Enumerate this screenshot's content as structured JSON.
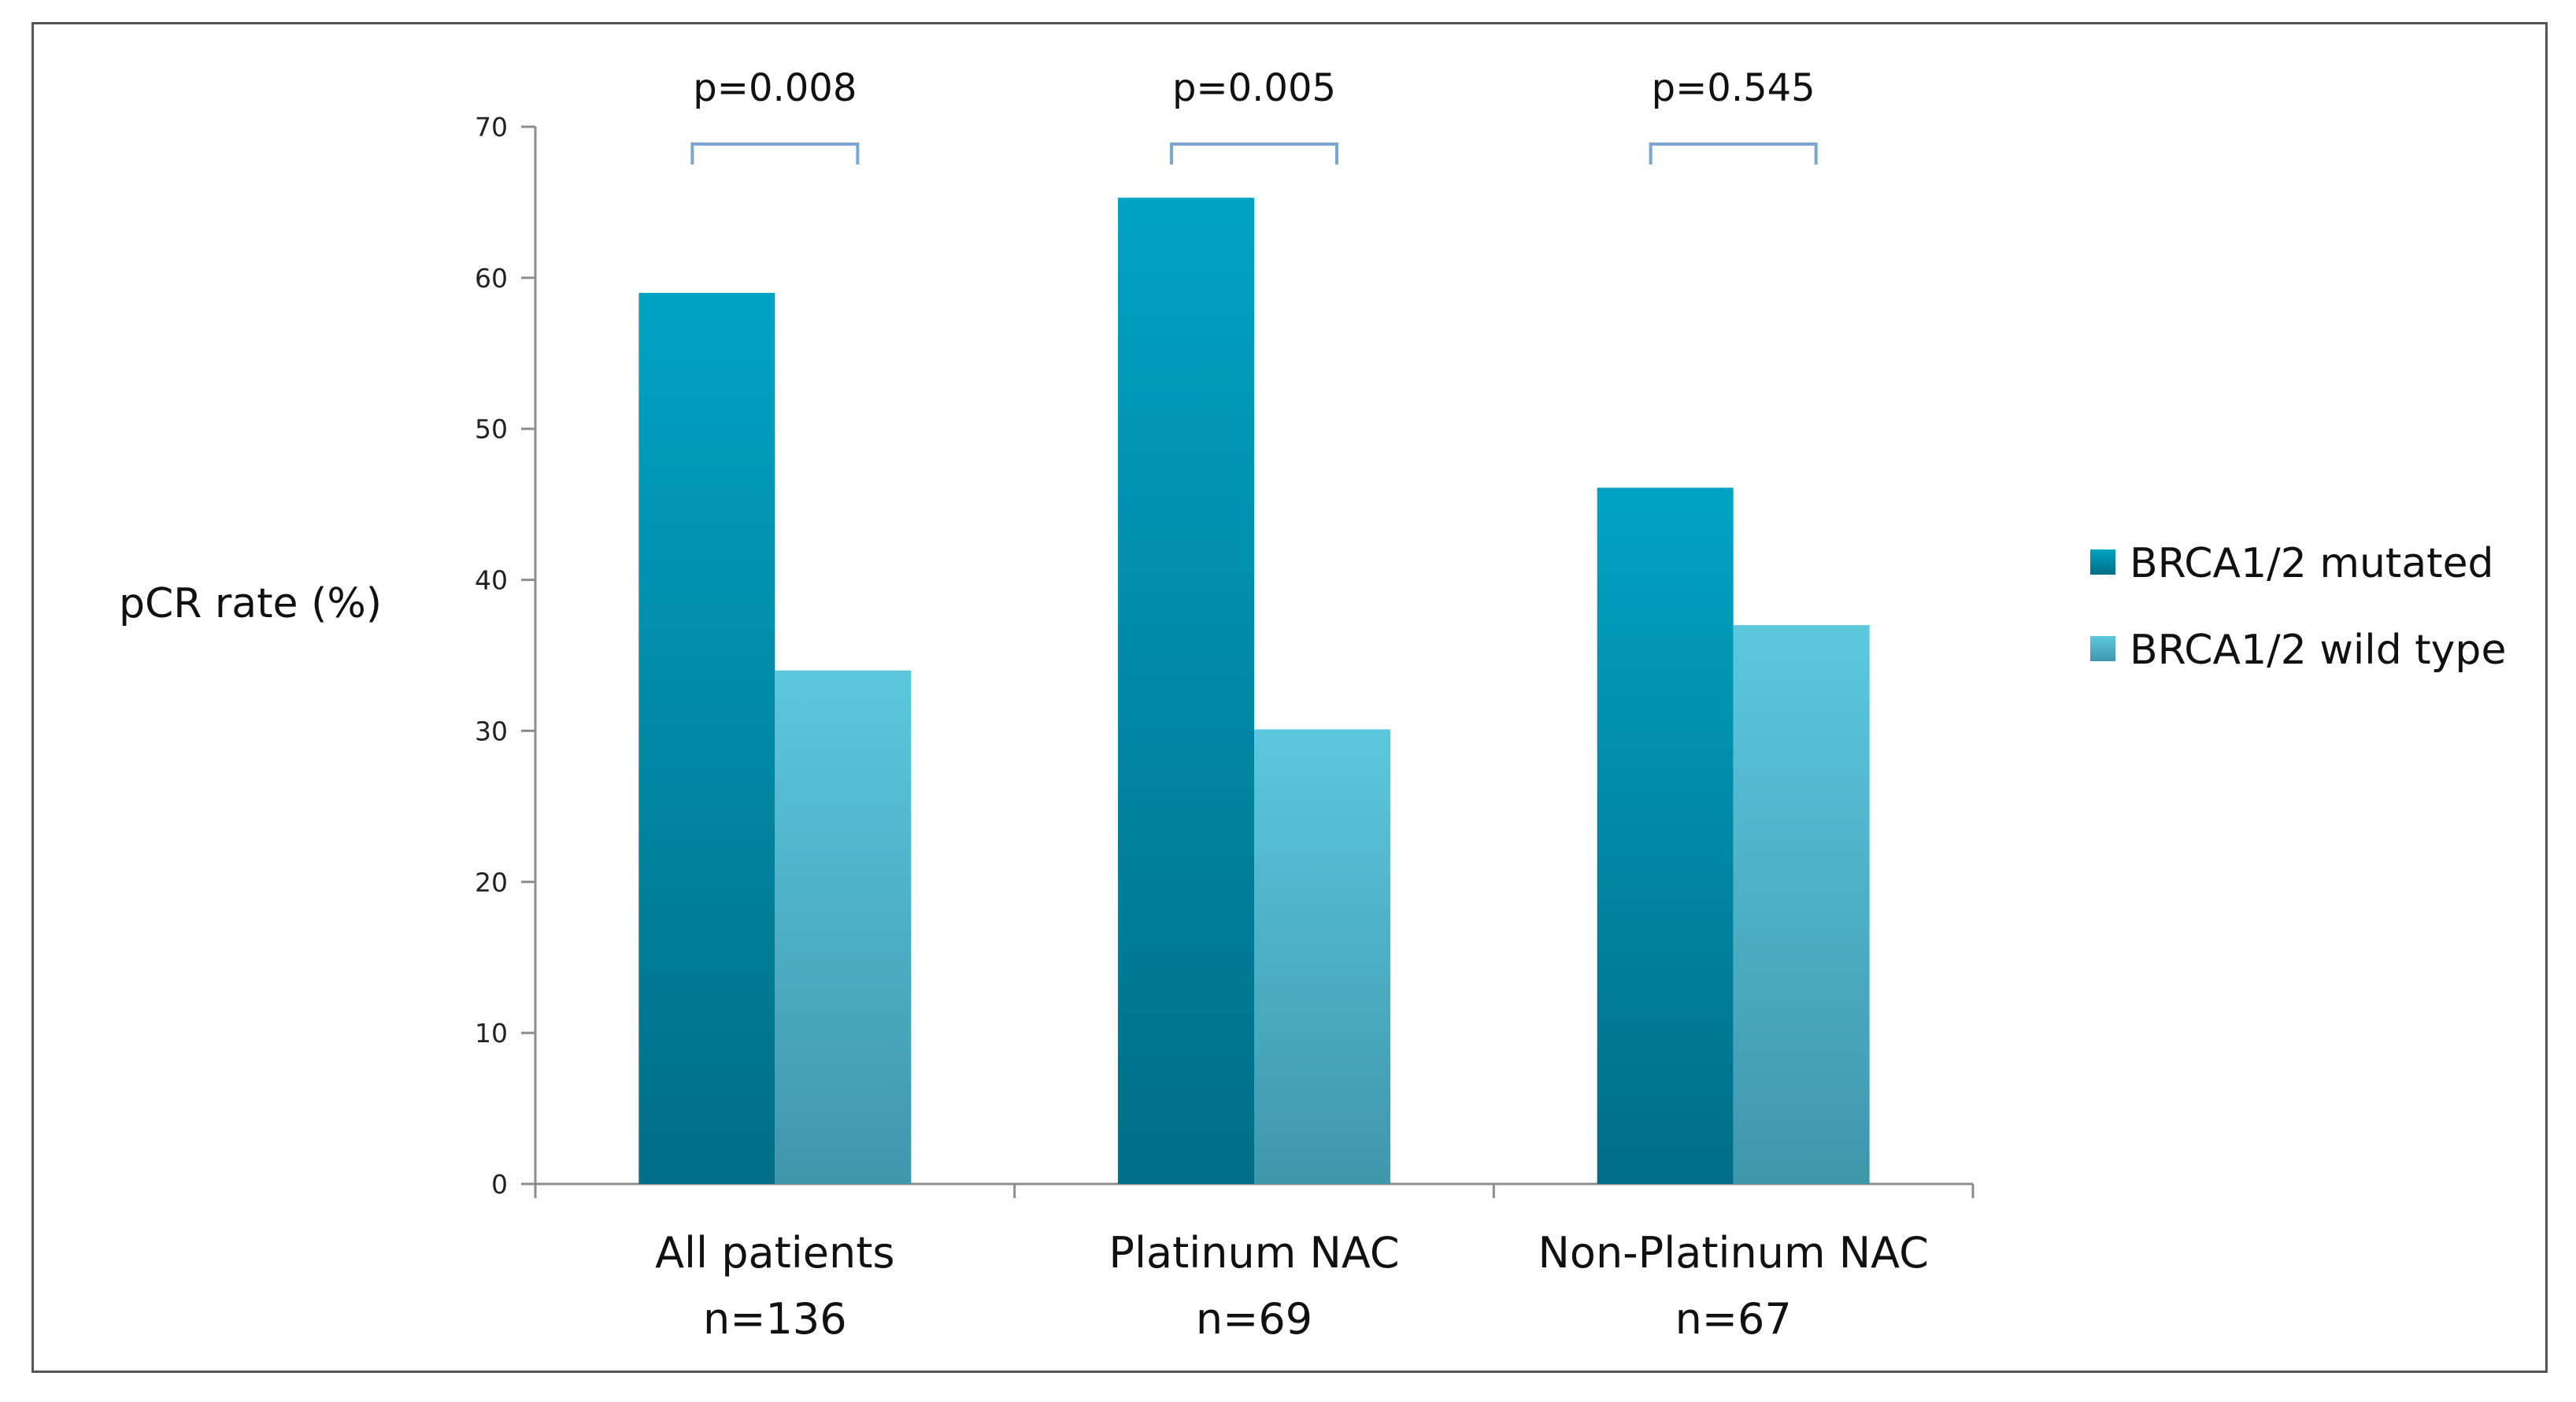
{
  "chart_data": {
    "type": "bar",
    "title": "",
    "xlabel": "",
    "ylabel": "pCR rate (%)",
    "ylim": [
      0,
      70
    ],
    "yticks": [
      0,
      10,
      20,
      30,
      40,
      50,
      60,
      70
    ],
    "grid": false,
    "legend_position": "right",
    "categories": [
      {
        "line1": "All patients",
        "line2": "n=136"
      },
      {
        "line1": "Platinum NAC",
        "line2": "n=69"
      },
      {
        "line1": "Non-Platinum NAC",
        "line2": "n=67"
      }
    ],
    "series": [
      {
        "name": "BRCA1/2 mutated",
        "values": [
          59,
          65.3,
          46.1
        ],
        "color_top": "#00a3c4",
        "color_bottom": "#006e86"
      },
      {
        "name": "BRCA1/2 wild type",
        "values": [
          34,
          30.1,
          37
        ],
        "color_top": "#5bc8de",
        "color_bottom": "#3f97aa"
      }
    ],
    "annotations": [
      "p=0.008",
      "p=0.005",
      "p=0.545"
    ],
    "bracket_color": "#7aa6d6"
  }
}
